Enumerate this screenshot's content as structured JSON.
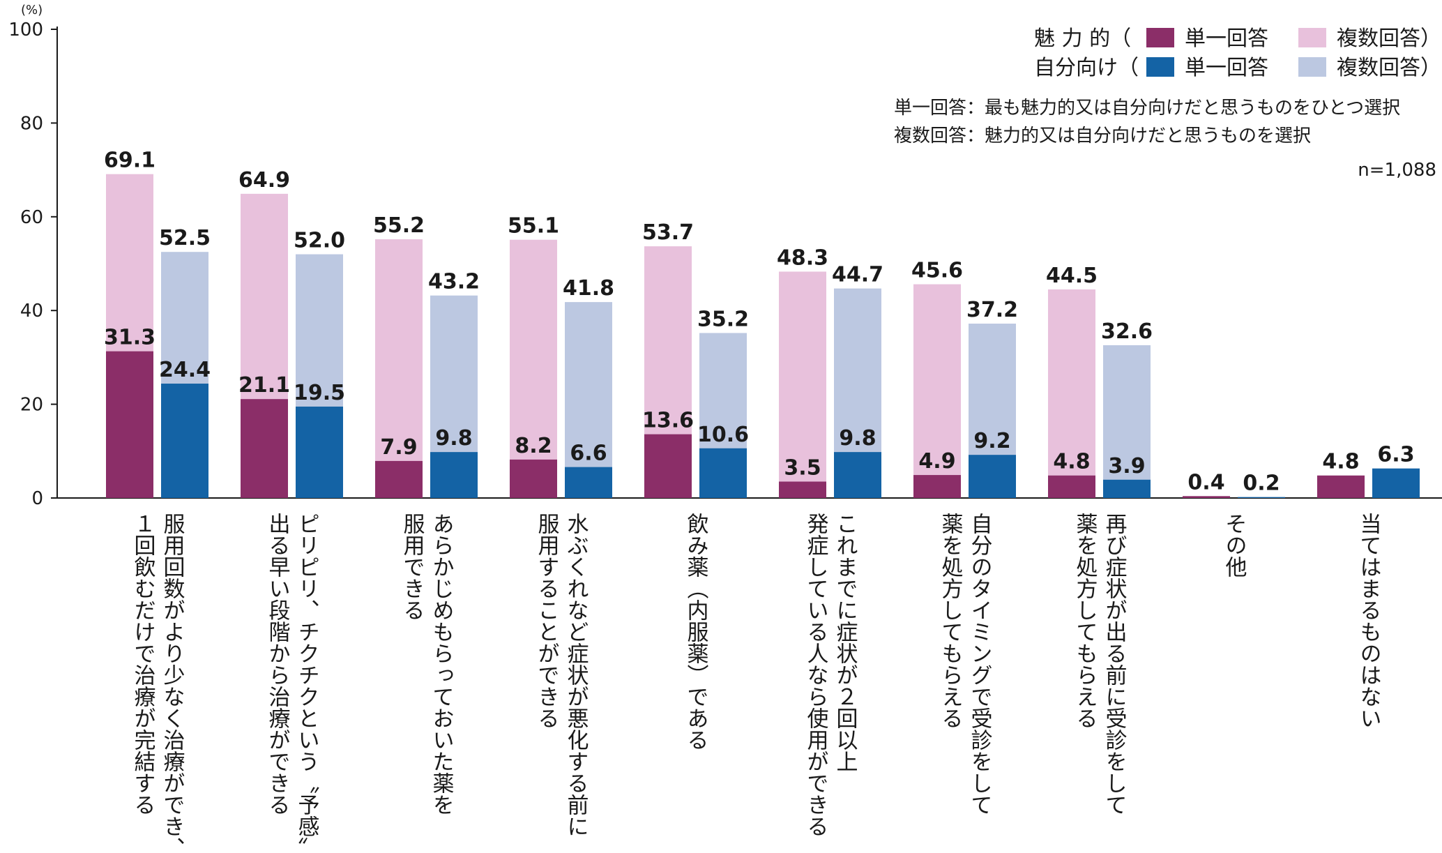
{
  "chart_data": {
    "type": "bar",
    "unit": "(%)",
    "ylim": [
      0,
      100
    ],
    "yticks": [
      "0",
      "20",
      "40",
      "60",
      "80",
      "100"
    ],
    "categories": [
      "服用回数がより少なく治療ができ、\n１回飲むだけで治療が完結する",
      "ピリピリ、チクチクという〝予感〟が\n出る早い段階から治療ができる",
      "あらかじめもらっておいた薬を\n服用できる",
      "水ぶくれなど症状が悪化する前に\n服用することができる",
      "飲み薬（内服薬）である",
      "これまでに症状が２回以上\n発症している人なら使用ができる",
      "自分のタイミングで受診をして\n薬を処方してもらえる",
      "再び症状が出る前に受診をして\n薬を処方してもらえる",
      "その他",
      "当てはまるものはない"
    ],
    "series": [
      {
        "name": "魅力的・単一回答",
        "color": "#8b2e68",
        "values": [
          31.3,
          21.1,
          7.9,
          8.2,
          13.6,
          3.5,
          4.9,
          4.8,
          0.4,
          4.8
        ],
        "labels": [
          "31.3",
          "21.1",
          "7.9",
          "8.2",
          "13.6",
          "3.5",
          "4.9",
          "4.8",
          "0.4",
          "4.8"
        ]
      },
      {
        "name": "魅力的・複数回答",
        "color": "#e8c1dc",
        "values": [
          69.1,
          64.9,
          55.2,
          55.1,
          53.7,
          48.3,
          45.6,
          44.5,
          null,
          null
        ],
        "labels": [
          "69.1",
          "64.9",
          "55.2",
          "55.1",
          "53.7",
          "48.3",
          "45.6",
          "44.5",
          "",
          ""
        ]
      },
      {
        "name": "自分向け・単一回答",
        "color": "#1463a5",
        "values": [
          24.4,
          19.5,
          9.8,
          6.6,
          10.6,
          9.8,
          9.2,
          3.9,
          0.2,
          6.3
        ],
        "labels": [
          "24.4",
          "19.5",
          "9.8",
          "6.6",
          "10.6",
          "9.8",
          "9.2",
          "3.9",
          "0.2",
          "6.3"
        ]
      },
      {
        "name": "自分向け・複数回答",
        "color": "#bcc8e1",
        "values": [
          52.5,
          52.0,
          43.2,
          41.8,
          35.2,
          44.7,
          37.2,
          32.6,
          null,
          null
        ],
        "labels": [
          "52.5",
          "52.0",
          "43.2",
          "41.8",
          "35.2",
          "44.7",
          "37.2",
          "32.6",
          "",
          ""
        ]
      }
    ],
    "legend": {
      "placement": "top-right",
      "rows": [
        {
          "label": "魅 力 的（",
          "single": "単一回答",
          "multi": "複数回答）"
        },
        {
          "label": "自分向け（",
          "single": "単一回答",
          "multi": "複数回答）"
        }
      ]
    },
    "notes": [
      "単一回答：最も魅力的又は自分向けだと思うものをひとつ選択",
      "複数回答：魅力的又は自分向けだと思うものを選択"
    ],
    "sample_size": "n=1,088",
    "grid": false
  }
}
